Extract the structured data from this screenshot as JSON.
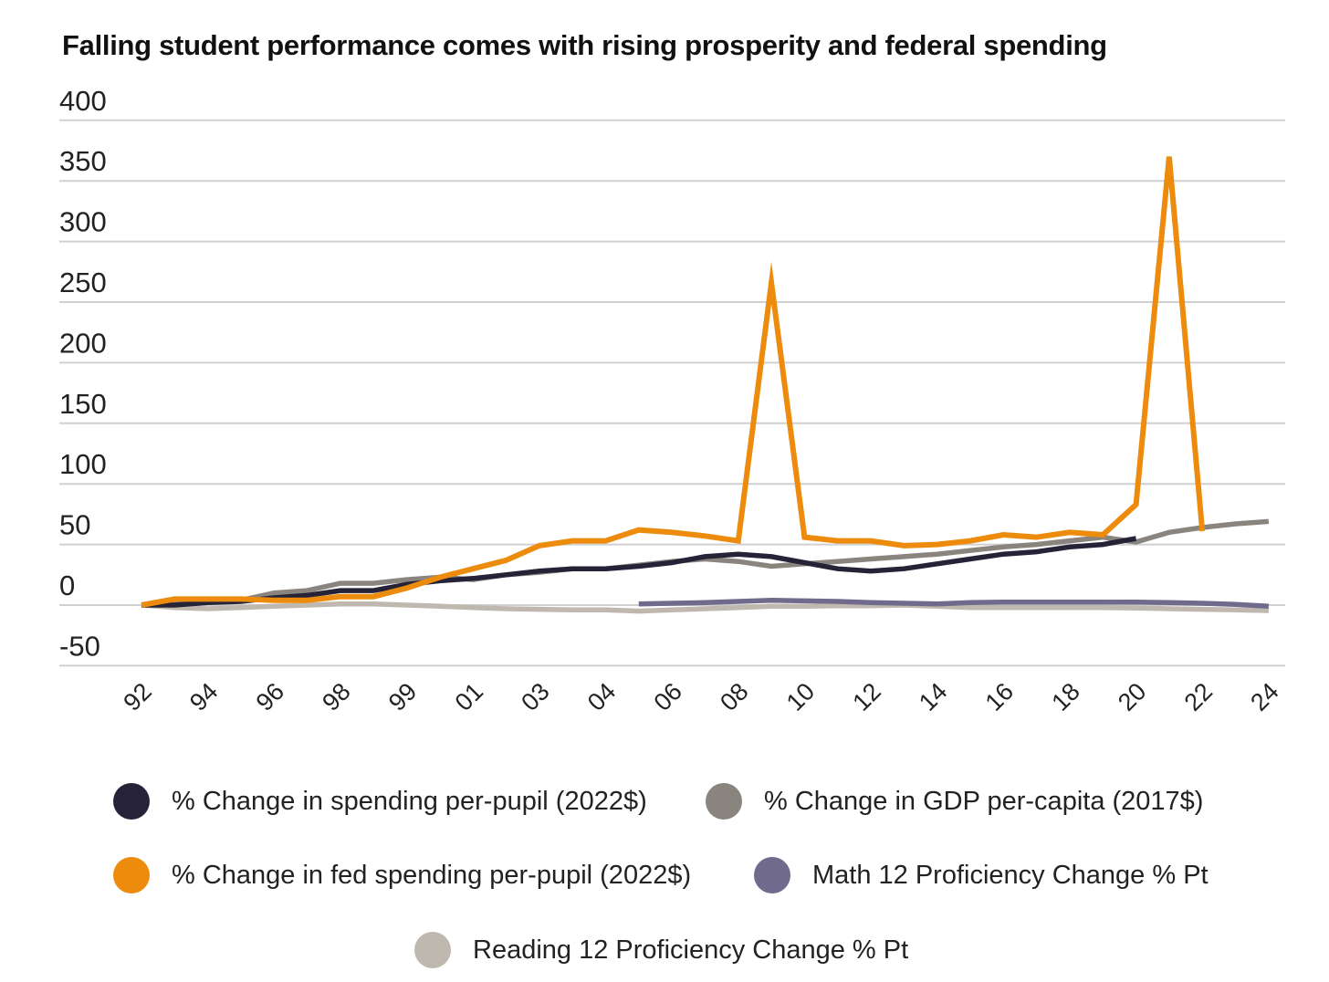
{
  "chart_data": {
    "type": "line",
    "title": "Falling student performance comes with rising prosperity and federal spending",
    "xlabel": "",
    "ylabel": "",
    "ylim": [
      -50,
      400
    ],
    "yticks": [
      "400",
      "350",
      "300",
      "250",
      "200",
      "150",
      "100",
      "50",
      "0",
      "-50"
    ],
    "ytick_values": [
      400,
      350,
      300,
      250,
      200,
      150,
      100,
      50,
      0,
      -50
    ],
    "xtick_labels": [
      "92",
      "94",
      "96",
      "98",
      "99",
      "01",
      "03",
      "04",
      "06",
      "08",
      "10",
      "12",
      "14",
      "16",
      "18",
      "20",
      "22",
      "24"
    ],
    "note": "x values are category indices 0-34; ticks every other index",
    "grid": true,
    "legend_position": "bottom",
    "series": [
      {
        "name": "% Change in spending per-pupil (2022$)",
        "color": "#262338",
        "start": 0,
        "values": [
          0,
          0,
          2,
          3,
          6,
          8,
          12,
          12,
          17,
          20,
          22,
          25,
          28,
          30,
          30,
          32,
          35,
          40,
          42,
          40,
          35,
          30,
          28,
          30,
          34,
          38,
          42,
          44,
          48,
          50,
          55
        ]
      },
      {
        "name": "% Change in GDP per-capita (2017$)",
        "color": "#8a847e",
        "start": 0,
        "values": [
          0,
          2,
          3,
          4,
          10,
          12,
          18,
          18,
          21,
          23,
          21,
          25,
          27,
          30,
          30,
          33,
          36,
          38,
          36,
          32,
          34,
          36,
          38,
          40,
          42,
          45,
          48,
          50,
          53,
          56,
          52,
          60,
          64,
          67,
          69
        ]
      },
      {
        "name": "% Change in fed spending per-pupil (2022$)",
        "color": "#ec8b0c",
        "start": 0,
        "values": [
          0,
          5,
          5,
          5,
          4,
          4,
          7,
          7,
          14,
          23,
          30,
          37,
          49,
          53,
          53,
          62,
          60,
          57,
          53,
          266,
          56,
          53,
          53,
          49,
          50,
          53,
          58,
          56,
          60,
          58,
          83,
          370,
          61
        ]
      },
      {
        "name": "Math 12 Proficiency Change % Pt",
        "color": "#706a8c",
        "start": 15,
        "values": [
          1,
          1.5,
          2,
          3,
          4,
          3.5,
          3,
          2,
          1.5,
          1,
          2,
          2.5,
          2.5,
          2.5,
          2.5,
          2.5,
          2,
          1.5,
          0.5,
          -1
        ]
      },
      {
        "name": "Reading 12 Proficiency Change % Pt",
        "color": "#bfb8ae",
        "start": 0,
        "values": [
          0,
          -2,
          -3,
          -2,
          -1,
          0,
          1,
          1,
          0,
          -1,
          -2,
          -3,
          -3.5,
          -4,
          -4,
          -5,
          -4,
          -3,
          -2,
          -1,
          -1,
          -0.5,
          -0.5,
          0,
          -1,
          -2,
          -2,
          -2,
          -2,
          -2,
          -2.5,
          -3,
          -3.5,
          -4,
          -4.5
        ]
      }
    ]
  }
}
